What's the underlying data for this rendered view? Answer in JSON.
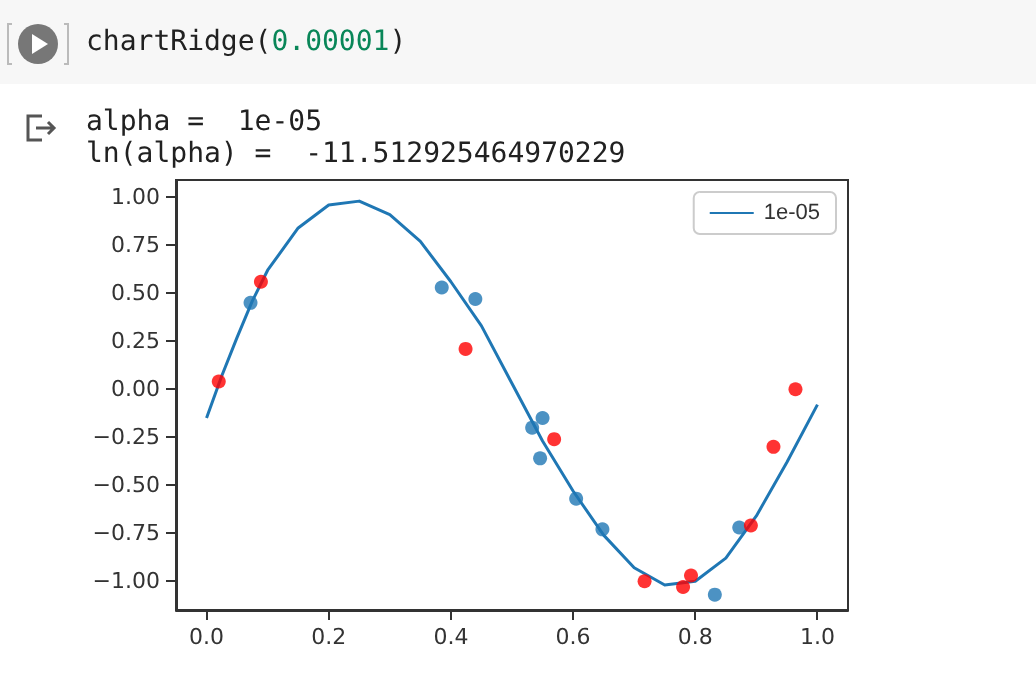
{
  "chart_data": {
    "type": "scatter",
    "annotations": [
      "chartRidge(0.00001)",
      "alpha =  1e-05",
      "ln(alpha) =  -11.512925464970229"
    ],
    "xlim": [
      -0.05,
      1.05
    ],
    "xticks": [
      {
        "value": 0,
        "label": "0.0"
      },
      {
        "value": 0.2,
        "label": "0.2"
      },
      {
        "value": 0.4,
        "label": "0.4"
      },
      {
        "value": 0.6,
        "label": "0.6"
      },
      {
        "value": 0.8,
        "label": "0.8"
      },
      {
        "value": 1,
        "label": "1.0"
      }
    ],
    "ylim": [
      -1.15,
      1.09
    ],
    "yticks": [
      {
        "value": -1,
        "label": "−1.00"
      },
      {
        "value": -0.75,
        "label": "−0.75"
      },
      {
        "value": -0.5,
        "label": "−0.50"
      },
      {
        "value": -0.25,
        "label": "−0.25"
      },
      {
        "value": 0,
        "label": "0.00"
      },
      {
        "value": 0.25,
        "label": "0.25"
      },
      {
        "value": 0.5,
        "label": "0.50"
      },
      {
        "value": 0.75,
        "label": "0.75"
      },
      {
        "value": 1,
        "label": "1.00"
      }
    ],
    "legend": "top right",
    "marker": "circle",
    "series": [
      {
        "type": "line",
        "name": "1e-05",
        "color": "#1f77b4",
        "marker": "none",
        "x": [
          0,
          0.025,
          0.05,
          0.075,
          0.1,
          0.15,
          0.2,
          0.25,
          0.3,
          0.35,
          0.4,
          0.45,
          0.5,
          0.55,
          0.6,
          0.65,
          0.7,
          0.75,
          0.8,
          0.85,
          0.9,
          0.95,
          1
        ],
        "values": [
          -0.15,
          0.07,
          0.27,
          0.46,
          0.62,
          0.84,
          0.96,
          0.98,
          0.91,
          0.77,
          0.56,
          0.33,
          0.03,
          -0.27,
          -0.53,
          -0.76,
          -0.93,
          -1.02,
          -1.0,
          -0.88,
          -0.66,
          -0.38,
          -0.08
        ]
      },
      {
        "color": "#1f77b4",
        "x": [
          0.072,
          0.385,
          0.44,
          0.533,
          0.55,
          0.546,
          0.605,
          0.648,
          0.832,
          0.872
        ],
        "values": [
          0.45,
          0.53,
          0.47,
          -0.2,
          -0.15,
          -0.36,
          -0.57,
          -0.73,
          -1.07,
          -0.72
        ]
      },
      {
        "color": "#ff0000",
        "x": [
          0.02,
          0.089,
          0.424,
          0.569,
          0.717,
          0.78,
          0.793,
          0.891,
          0.928,
          0.964
        ],
        "values": [
          0.04,
          0.56,
          0.21,
          -0.26,
          -1.0,
          -1.03,
          -0.97,
          -0.71,
          -0.3,
          0.0
        ]
      }
    ]
  }
}
